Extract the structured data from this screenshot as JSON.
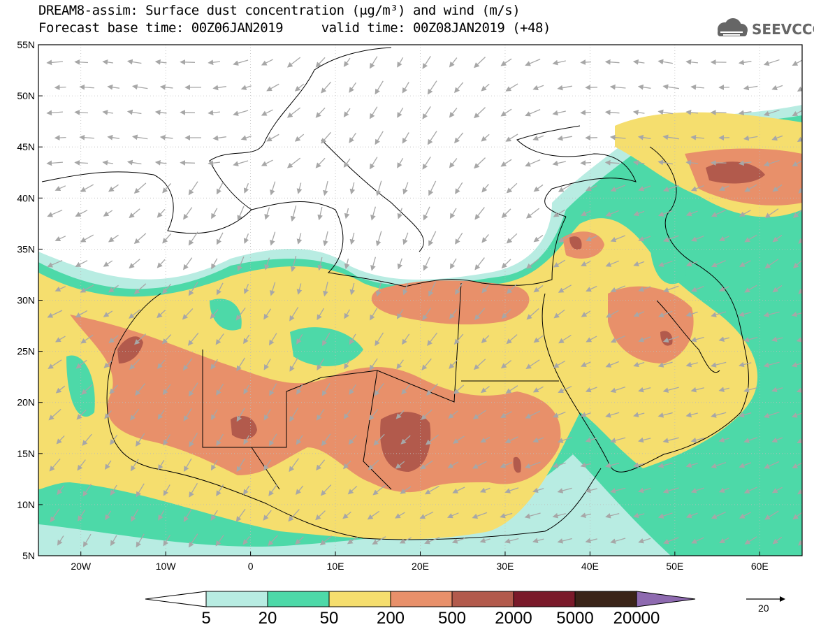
{
  "header": {
    "title_line1": "DREAM8-assim: Surface dust concentration (μg/m³) and wind (m/s)",
    "title_line2": "Forecast base time: 00Z06JAN2019     valid time: 00Z08JAN2019 (+48)",
    "logo_text": "SEEVCCC"
  },
  "axes": {
    "lat_labels": [
      "55N",
      "50N",
      "45N",
      "40N",
      "35N",
      "30N",
      "25N",
      "20N",
      "15N",
      "10N",
      "5N"
    ],
    "lon_labels": [
      "20W",
      "10W",
      "0",
      "10E",
      "20E",
      "30E",
      "40E",
      "50E",
      "60E"
    ]
  },
  "colorbar": {
    "labels": [
      "5",
      "20",
      "50",
      "200",
      "500",
      "2000",
      "5000",
      "20000"
    ],
    "colors": [
      "#ffffff",
      "#b8ece2",
      "#4dd9a8",
      "#f5de6e",
      "#e8906a",
      "#b25a4c",
      "#7a1a2a",
      "#3a2418",
      "#8e6ab0"
    ]
  },
  "wind_reference": {
    "label": "20"
  },
  "colors": {
    "land_border": "#000000",
    "wind_arrow": "#a7a7a7",
    "grid": "#bbbbbb"
  }
}
